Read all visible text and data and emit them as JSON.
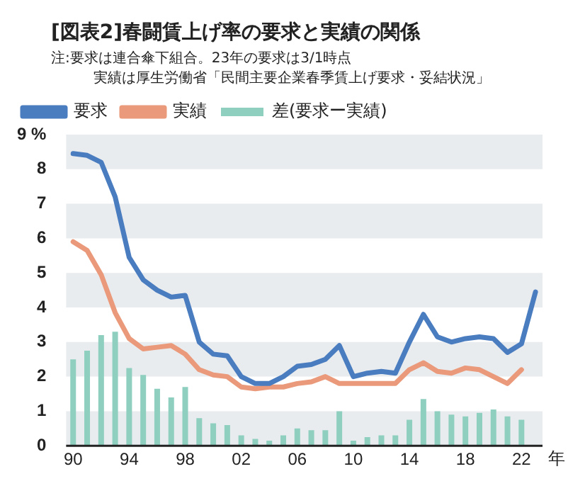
{
  "chart_data": {
    "type": "line",
    "title": "[図表2]春闘賃上げ率の要求と実績の関係",
    "annotations": [
      "注:要求は連合傘下組合。23年の要求は3/1時点",
      "実績は厚生労働省「民間主要企業春季賃上げ要求・妥結状況」"
    ],
    "categories": [
      "90",
      null,
      null,
      null,
      "94",
      null,
      null,
      null,
      "98",
      null,
      null,
      null,
      "02",
      null,
      null,
      null,
      "06",
      null,
      null,
      null,
      "10",
      null,
      null,
      null,
      "14",
      null,
      null,
      null,
      "18",
      null,
      null,
      null,
      "22",
      null
    ],
    "xlabel": "年",
    "series": [
      {
        "name": "要求",
        "color": "#4a7cc0",
        "values": [
          8.45,
          8.4,
          8.2,
          7.2,
          5.45,
          4.8,
          4.5,
          4.3,
          4.35,
          3.0,
          2.65,
          2.6,
          2.0,
          1.8,
          1.8,
          2.0,
          2.3,
          2.35,
          2.5,
          2.9,
          2.0,
          2.1,
          2.15,
          2.1,
          3.0,
          3.8,
          3.15,
          3.0,
          3.1,
          3.15,
          3.1,
          2.7,
          2.95,
          4.45
        ]
      },
      {
        "name": "実績",
        "color": "#ea9a7a",
        "values": [
          5.9,
          5.65,
          4.95,
          3.85,
          3.1,
          2.8,
          2.85,
          2.9,
          2.65,
          2.2,
          2.05,
          2.0,
          1.7,
          1.65,
          1.7,
          1.7,
          1.8,
          1.85,
          2.0,
          1.8,
          1.8,
          1.8,
          1.8,
          1.8,
          2.2,
          2.4,
          2.15,
          2.1,
          2.25,
          2.2,
          2.0,
          1.8,
          2.2,
          null
        ]
      },
      {
        "name": "差(要求ー実績)",
        "type": "bar",
        "color": "#8ecfbf",
        "values": [
          2.5,
          2.75,
          3.2,
          3.3,
          2.25,
          2.05,
          1.65,
          1.4,
          1.7,
          0.8,
          0.65,
          0.6,
          0.3,
          0.2,
          0.15,
          0.3,
          0.5,
          0.45,
          0.45,
          1.0,
          0.15,
          0.25,
          0.3,
          0.3,
          0.75,
          1.35,
          1.0,
          0.9,
          0.85,
          0.95,
          1.05,
          0.85,
          0.75,
          null
        ]
      }
    ],
    "ylim": [
      0,
      9
    ],
    "yticks": [
      0,
      1,
      2,
      3,
      4,
      5,
      6,
      7,
      8,
      {
        "value": 9,
        "label": "9 %"
      }
    ],
    "bands": [
      {
        "axis": "y",
        "from": 0,
        "to": 1,
        "color": "#e9ecef"
      },
      {
        "axis": "y",
        "from": 2,
        "to": 3,
        "color": "#e9ecef"
      },
      {
        "axis": "y",
        "from": 4,
        "to": 5,
        "color": "#e9ecef"
      },
      {
        "axis": "y",
        "from": 6,
        "to": 7,
        "color": "#e9ecef"
      },
      {
        "axis": "y",
        "from": 8,
        "to": 9,
        "color": "#e9ecef"
      }
    ],
    "legend": "top left",
    "marker": "none",
    "line_style": "solid"
  }
}
